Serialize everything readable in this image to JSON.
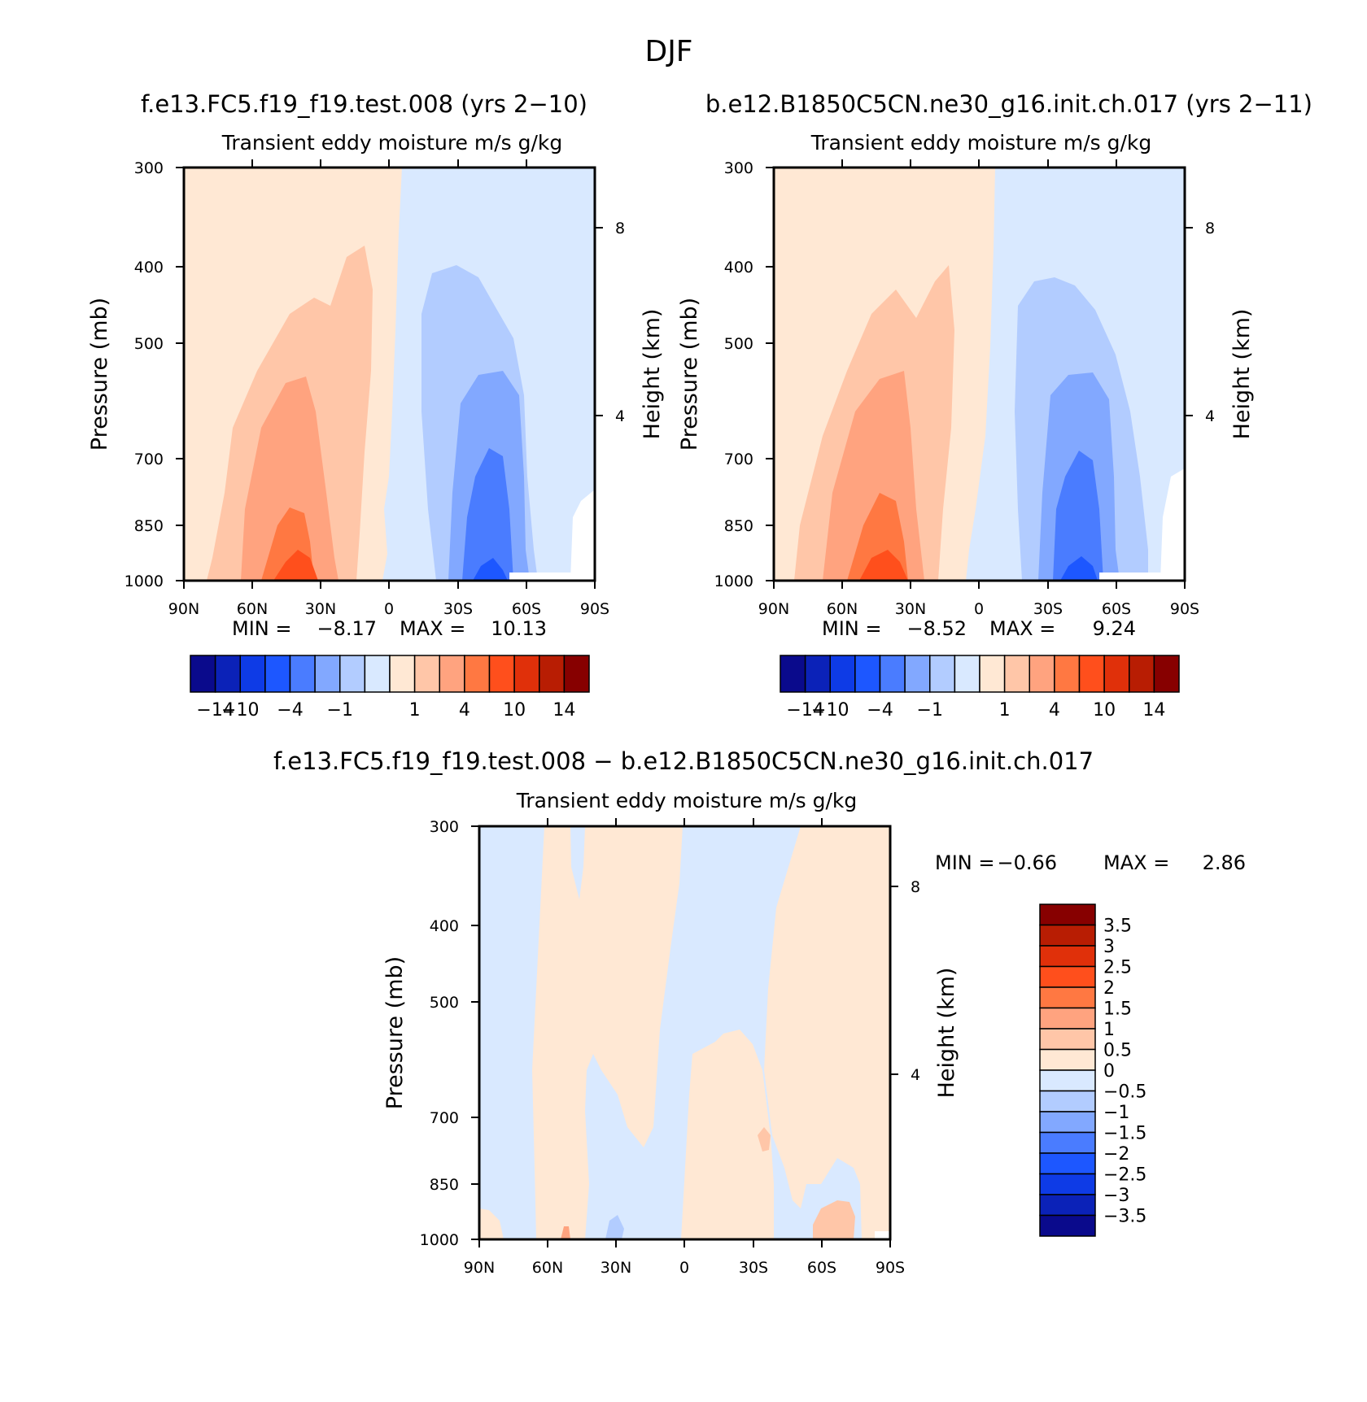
{
  "figure": {
    "title": "DJF",
    "left_case_title": "f.e13.FC5.f19_f19.test.008 (yrs 2−10)",
    "right_case_title": "b.e12.B1850C5CN.ne30_g16.init.ch.017 (yrs 2−11)",
    "diff_case_title": "f.e13.FC5.f19_f19.test.008 − b.e12.B1850C5CN.ne30_g16.init.ch.017"
  },
  "chart_data": [
    {
      "type": "contour",
      "id": "panel_a",
      "title": "Transient eddy moisture m/s g/kg",
      "xlabel": "",
      "ylabel": "Pressure (mb)",
      "y2label": "Height (km)",
      "x_ticks": [
        "90N",
        "60N",
        "30N",
        "0",
        "30S",
        "60S",
        "90S"
      ],
      "y_ticks": [
        "300",
        "400",
        "500",
        "700",
        "850",
        "1000"
      ],
      "y2_ticks": [
        "8",
        "4"
      ],
      "min_label": "MIN =",
      "min_value": "−8.17",
      "max_label": "MAX =",
      "max_value": "10.13",
      "colorbar_labels": [
        "−14",
        "−10",
        "−4",
        "−1",
        "1",
        "4",
        "10",
        "14"
      ]
    },
    {
      "type": "contour",
      "id": "panel_b",
      "title": "Transient eddy moisture m/s g/kg",
      "xlabel": "",
      "ylabel": "Pressure (mb)",
      "y2label": "Height (km)",
      "x_ticks": [
        "90N",
        "60N",
        "30N",
        "0",
        "30S",
        "60S",
        "90S"
      ],
      "y_ticks": [
        "300",
        "400",
        "500",
        "700",
        "850",
        "1000"
      ],
      "y2_ticks": [
        "8",
        "4"
      ],
      "min_label": "MIN =",
      "min_value": "−8.52",
      "max_label": "MAX =",
      "max_value": "9.24",
      "colorbar_labels": [
        "−14",
        "−10",
        "−4",
        "−1",
        "1",
        "4",
        "10",
        "14"
      ]
    },
    {
      "type": "contour",
      "id": "panel_diff",
      "title": "Transient eddy moisture m/s g/kg",
      "xlabel": "",
      "ylabel": "Pressure (mb)",
      "y2label": "Height (km)",
      "x_ticks": [
        "90N",
        "60N",
        "30N",
        "0",
        "30S",
        "60S",
        "90S"
      ],
      "y_ticks": [
        "300",
        "400",
        "500",
        "700",
        "850",
        "1000"
      ],
      "y2_ticks": [
        "8",
        "4"
      ],
      "min_label": "MIN =",
      "min_value": "−0.66",
      "max_label": "MAX =",
      "max_value": "2.86",
      "colorbar_labels": [
        "3.5",
        "3",
        "2.5",
        "2",
        "1.5",
        "1",
        "0.5",
        "0",
        "−0.5",
        "−1",
        "−1.5",
        "−2",
        "−2.5",
        "−3",
        "−3.5"
      ]
    }
  ],
  "palette": [
    "#0a0a8c",
    "#0b22b8",
    "#0e3be6",
    "#1d57ff",
    "#4a7cff",
    "#82a8ff",
    "#b2ccff",
    "#d9e9ff",
    "#ffe8d4",
    "#ffc6a8",
    "#ffa37f",
    "#ff7842",
    "#ff4f1c",
    "#e0300a",
    "#b81d03",
    "#870000"
  ]
}
